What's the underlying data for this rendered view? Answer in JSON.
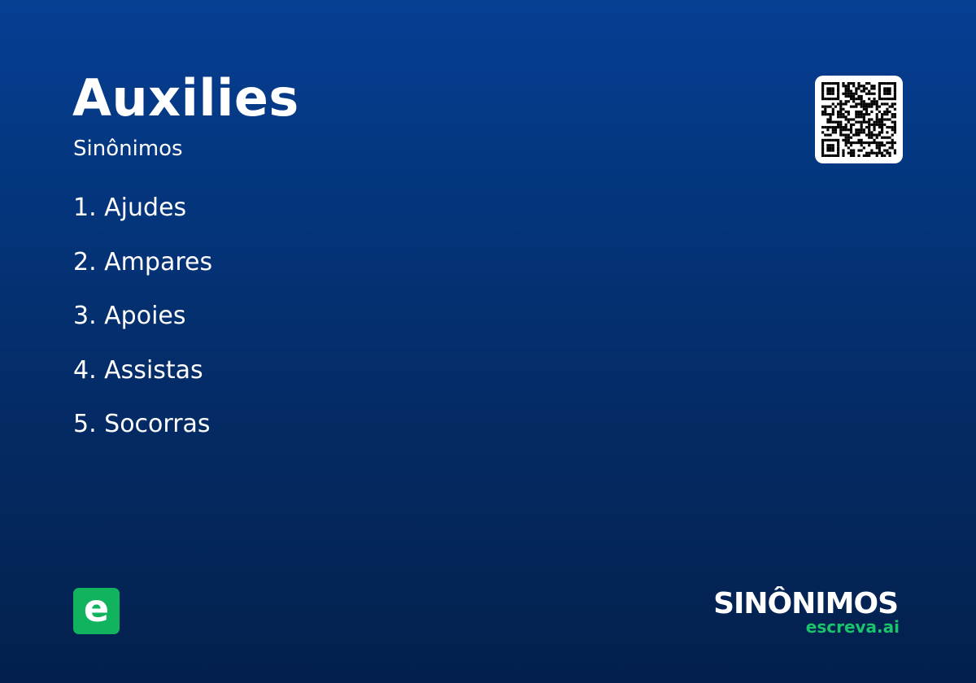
{
  "header": {
    "title": "Auxilies",
    "subtitle": "Sinônimos"
  },
  "synonyms": [
    "1. Ajudes",
    "2. Ampares",
    "3. Apoies",
    "4. Assistas",
    "5. Socorras"
  ],
  "logo": {
    "letter": "e",
    "brand": "SINÔNIMOS",
    "domain": "escreva.ai"
  },
  "colors": {
    "accent": "#12b35f",
    "background_top": "#053f93",
    "background_bottom": "#03204c"
  },
  "icons": {
    "qr": "qr-code-icon"
  }
}
